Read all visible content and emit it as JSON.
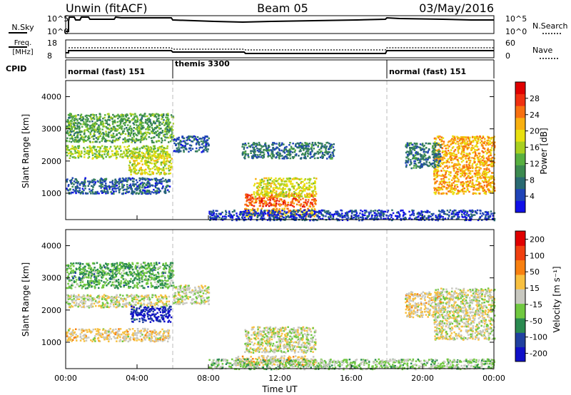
{
  "header": {
    "station": "Unwin (fitACF)",
    "beam": "Beam 05",
    "date": "03/May/2016"
  },
  "summary_panels": {
    "nsky_label": "N.Sky",
    "nsky_ticks": [
      "10^5",
      "10^0"
    ],
    "nsearch_label": "N.Search",
    "nsearch_ticks": [
      "10^5",
      "10^0"
    ],
    "freq_label": "Freq.",
    "freq_unit": "[MHz]",
    "freq_ticks": [
      "18",
      "8"
    ],
    "nave_label": "Nave",
    "nave_ticks": [
      "60",
      "0"
    ],
    "cpid_label": "CPID",
    "cpid_segments": [
      {
        "label": "normal (fast) 151",
        "start_hour": 0,
        "end_hour": 6
      },
      {
        "label": "themis 3300",
        "start_hour": 6,
        "end_hour": 18
      },
      {
        "label": "normal (fast) 151",
        "start_hour": 18,
        "end_hour": 24
      }
    ]
  },
  "chart_data": [
    {
      "type": "heatmap",
      "name": "power",
      "ylabel": "Slant Range [km]",
      "yticks": [
        "1000",
        "2000",
        "3000",
        "4000"
      ],
      "ylim": [
        180,
        4500
      ],
      "xlim": [
        0,
        24
      ],
      "colorbar": {
        "label": "Power [dB]",
        "ticks": [
          "4",
          "8",
          "12",
          "16",
          "20",
          "24",
          "28"
        ],
        "range": [
          0,
          32
        ],
        "colors": [
          "#1010e8",
          "#2044b8",
          "#2a6a72",
          "#3c8a50",
          "#58b040",
          "#a8d020",
          "#e8e010",
          "#f8b010",
          "#f87010",
          "#f03010",
          "#e00000"
        ]
      },
      "regions": [
        {
          "x": [
            0.0,
            5.8
          ],
          "y": [
            2100,
            2500
          ],
          "value": 16
        },
        {
          "x": [
            3.5,
            5.9
          ],
          "y": [
            1600,
            2200
          ],
          "value": 18
        },
        {
          "x": [
            0.0,
            5.8
          ],
          "y": [
            1000,
            1500
          ],
          "value": 6
        },
        {
          "x": [
            0.0,
            6.0
          ],
          "y": [
            2600,
            3500
          ],
          "value": 12
        },
        {
          "x": [
            6.0,
            8.0
          ],
          "y": [
            2300,
            2800
          ],
          "value": 6
        },
        {
          "x": [
            10.0,
            14.0
          ],
          "y": [
            600,
            1000
          ],
          "value": 26
        },
        {
          "x": [
            10.5,
            14.0
          ],
          "y": [
            900,
            1500
          ],
          "value": 18
        },
        {
          "x": [
            10.0,
            14.0
          ],
          "y": [
            300,
            550
          ],
          "value": 22
        },
        {
          "x": [
            8.0,
            24.0
          ],
          "y": [
            180,
            500
          ],
          "value": 4
        },
        {
          "x": [
            20.6,
            24.0
          ],
          "y": [
            1000,
            2800
          ],
          "value": 22
        },
        {
          "x": [
            19.0,
            21.0
          ],
          "y": [
            1800,
            2600
          ],
          "value": 8
        },
        {
          "x": [
            9.8,
            15.0
          ],
          "y": [
            2100,
            2600
          ],
          "value": 8
        }
      ]
    },
    {
      "type": "heatmap",
      "name": "velocity",
      "ylabel": "Slant Range [km]",
      "yticks": [
        "1000",
        "2000",
        "3000",
        "4000"
      ],
      "ylim": [
        180,
        4500
      ],
      "xlim": [
        0,
        24
      ],
      "xlabel": "Time UT",
      "xticks": [
        "00:00",
        "04:00",
        "08:00",
        "12:00",
        "16:00",
        "20:00",
        "00:00"
      ],
      "colorbar": {
        "label": "Velocity [m s⁻¹]",
        "ticks": [
          "200",
          "100",
          "50",
          "15",
          "-15",
          "-50",
          "-100",
          "-200"
        ],
        "range": [
          -250,
          250
        ],
        "colors": [
          "#1010c8",
          "#2040a0",
          "#2a8a50",
          "#70c840",
          "#c8c8c0",
          "#f8c040",
          "#f88010",
          "#f04010",
          "#e00000"
        ]
      },
      "regions": [
        {
          "x": [
            0.0,
            5.8
          ],
          "y": [
            2100,
            2500
          ],
          "value": 0
        },
        {
          "x": [
            3.6,
            5.9
          ],
          "y": [
            1650,
            2150
          ],
          "value": -200
        },
        {
          "x": [
            0.0,
            5.8
          ],
          "y": [
            1050,
            1450
          ],
          "value": 30
        },
        {
          "x": [
            10.0,
            14.0
          ],
          "y": [
            700,
            1500
          ],
          "value": 0
        },
        {
          "x": [
            9.5,
            14.0
          ],
          "y": [
            300,
            600
          ],
          "value": 40
        },
        {
          "x": [
            8.0,
            24.0
          ],
          "y": [
            180,
            500
          ],
          "value": -40
        },
        {
          "x": [
            20.6,
            24.0
          ],
          "y": [
            1100,
            2700
          ],
          "value": 0
        },
        {
          "x": [
            19.0,
            21.0
          ],
          "y": [
            1800,
            2600
          ],
          "value": 30
        },
        {
          "x": [
            6.0,
            8.0
          ],
          "y": [
            2200,
            2800
          ],
          "value": 0
        },
        {
          "x": [
            0.0,
            6.0
          ],
          "y": [
            2700,
            3500
          ],
          "value": -80
        }
      ]
    }
  ]
}
